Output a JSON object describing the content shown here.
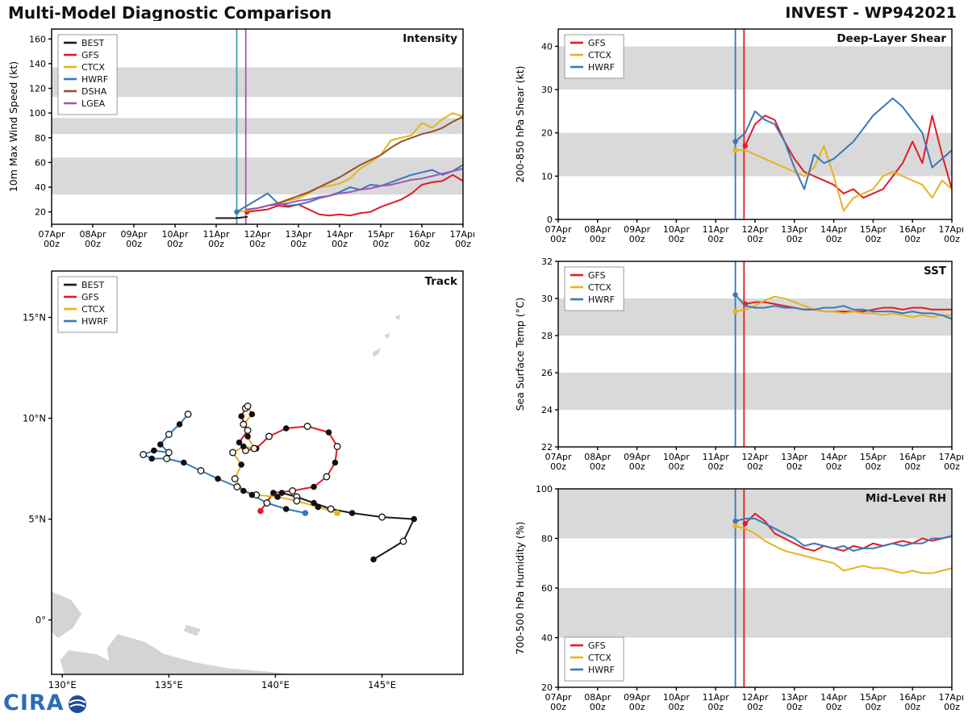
{
  "header": {
    "title_left": "Multi-Model Diagnostic Comparison",
    "title_right": "INVEST - WP942021"
  },
  "logo": {
    "text": "CIRA"
  },
  "colors": {
    "best": "#1a1a1a",
    "gfs": "#e41b23",
    "ctcx": "#e6b31e",
    "hwrf": "#3978b8",
    "dsha": "#96522a",
    "lgea": "#9b59b6",
    "band": "#d9d9d9",
    "land": "#d4d4d4",
    "vline_teal": "#3aa3b0"
  },
  "time_axis": {
    "xlim": [
      0,
      10
    ],
    "labels": [
      "07Apr",
      "08Apr",
      "09Apr",
      "10Apr",
      "11Apr",
      "12Apr",
      "13Apr",
      "14Apr",
      "15Apr",
      "16Apr",
      "17Apr"
    ],
    "sub": "00z"
  },
  "chart_data": [
    {
      "id": "intensity",
      "type": "line",
      "title": "Intensity",
      "ylabel": "10m Max Wind Speed (kt)",
      "ylim": [
        10,
        168
      ],
      "yticks": [
        20,
        40,
        60,
        80,
        100,
        120,
        140,
        160
      ],
      "bands": [
        [
          34,
          64
        ],
        [
          83,
          96
        ],
        [
          113,
          137
        ]
      ],
      "legend_pos": "tl",
      "vlines": [
        {
          "x": 4.5,
          "color": "#3aa3b0"
        },
        {
          "x": 4.72,
          "color": "#9b59b6"
        }
      ],
      "series": [
        {
          "name": "BEST",
          "color": "#1a1a1a",
          "x0": 4.0,
          "dt": 0.25,
          "m0": false,
          "y": [
            15,
            15,
            15,
            16
          ]
        },
        {
          "name": "GFS",
          "color": "#e41b23",
          "x0": 4.75,
          "dt": 0.25,
          "m0": true,
          "y": [
            20,
            21,
            22,
            25,
            24,
            26,
            22,
            18,
            17,
            18,
            17,
            19,
            20,
            24,
            27,
            30,
            35,
            42,
            44,
            45,
            50,
            45
          ]
        },
        {
          "name": "CTCX",
          "color": "#e6b31e",
          "x0": 4.5,
          "dt": 0.25,
          "m0": true,
          "mN": true,
          "y": [
            20,
            21,
            23,
            25,
            27,
            29,
            31,
            35,
            40,
            41,
            43,
            47,
            55,
            60,
            66,
            78,
            80,
            82,
            92,
            88,
            95,
            100,
            97
          ]
        },
        {
          "name": "HWRF",
          "color": "#3978b8",
          "x0": 4.5,
          "dt": 0.25,
          "m0": true,
          "y": [
            20,
            25,
            30,
            35,
            27,
            25,
            26,
            28,
            31,
            33,
            36,
            40,
            38,
            42,
            41,
            44,
            47,
            50,
            52,
            54,
            50,
            53,
            58
          ]
        },
        {
          "name": "DSHA",
          "color": "#96522a",
          "x0": 4.75,
          "dt": 0.25,
          "m0": false,
          "y": [
            22,
            23,
            25,
            27,
            30,
            33,
            36,
            40,
            44,
            48,
            53,
            58,
            62,
            66,
            72,
            77,
            80,
            83,
            85,
            88,
            93,
            97
          ]
        },
        {
          "name": "LGEA",
          "color": "#9b59b6",
          "x0": 4.75,
          "dt": 0.25,
          "m0": false,
          "y": [
            22,
            23,
            25,
            26,
            27,
            29,
            30,
            32,
            33,
            35,
            36,
            38,
            39,
            41,
            42,
            44,
            46,
            47,
            49,
            51,
            53,
            55
          ]
        }
      ]
    },
    {
      "id": "track",
      "type": "track",
      "title": "Track",
      "xlim": [
        129.5,
        148.8
      ],
      "ylim": [
        -2.7,
        17.3
      ],
      "xticks": [
        {
          "v": 130,
          "label": "130°E"
        },
        {
          "v": 135,
          "label": "135°E"
        },
        {
          "v": 140,
          "label": "140°E"
        },
        {
          "v": 145,
          "label": "145°E"
        }
      ],
      "yticks": [
        {
          "v": 0,
          "label": "0°"
        },
        {
          "v": 5,
          "label": "5°N"
        },
        {
          "v": 10,
          "label": "10°N"
        },
        {
          "v": 15,
          "label": "15°N"
        }
      ],
      "land": [
        [
          [
            129.5,
            1.4
          ],
          [
            130.4,
            1.0
          ],
          [
            130.9,
            0.3
          ],
          [
            130.5,
            -0.4
          ],
          [
            129.8,
            -0.9
          ],
          [
            129.5,
            -0.6
          ]
        ],
        [
          [
            130.3,
            -1.5
          ],
          [
            131.6,
            -1.7
          ],
          [
            132.7,
            -2.3
          ],
          [
            132.3,
            -2.7
          ],
          [
            130.1,
            -2.7
          ],
          [
            129.9,
            -2.0
          ]
        ],
        [
          [
            132.6,
            -0.7
          ],
          [
            133.9,
            -1.1
          ],
          [
            134.8,
            -1.7
          ],
          [
            136.2,
            -2.1
          ],
          [
            137.8,
            -2.4
          ],
          [
            139.5,
            -2.55
          ],
          [
            141.0,
            -2.7
          ],
          [
            132.3,
            -2.7
          ],
          [
            132.1,
            -1.4
          ]
        ],
        [
          [
            135.8,
            -0.25
          ],
          [
            136.5,
            -0.45
          ],
          [
            136.3,
            -0.8
          ],
          [
            135.7,
            -0.55
          ]
        ],
        [
          [
            144.55,
            13.25
          ],
          [
            144.95,
            13.5
          ],
          [
            144.85,
            13.2
          ],
          [
            144.6,
            13.05
          ]
        ],
        [
          [
            145.1,
            14.1
          ],
          [
            145.35,
            14.25
          ],
          [
            145.3,
            13.95
          ]
        ],
        [
          [
            145.6,
            15.0
          ],
          [
            145.85,
            15.15
          ],
          [
            145.8,
            14.85
          ]
        ]
      ],
      "tracks": [
        {
          "name": "BEST",
          "color": "#1a1a1a",
          "points": [
            [
              144.6,
              3.0,
              "f"
            ],
            [
              146.0,
              3.9,
              "o"
            ],
            [
              146.5,
              5.0,
              "f"
            ],
            [
              145.0,
              5.1,
              "o"
            ],
            [
              143.6,
              5.3,
              "f"
            ],
            [
              142.6,
              5.5,
              "o"
            ],
            [
              141.8,
              5.8,
              "f"
            ],
            [
              141.0,
              6.1,
              "o"
            ],
            [
              140.3,
              6.3,
              "f"
            ]
          ]
        },
        {
          "name": "GFS",
          "color": "#e41b23",
          "points": [
            [
              139.3,
              5.4,
              "c"
            ],
            [
              139.9,
              6.3,
              "f"
            ],
            [
              140.8,
              6.4,
              "o"
            ],
            [
              141.8,
              6.6,
              "f"
            ],
            [
              142.4,
              7.1,
              "o"
            ],
            [
              142.8,
              7.8,
              "f"
            ],
            [
              142.9,
              8.6,
              "o"
            ],
            [
              142.5,
              9.3,
              "f"
            ],
            [
              141.5,
              9.6,
              "o"
            ],
            [
              140.5,
              9.5,
              "f"
            ],
            [
              139.7,
              9.1,
              "o"
            ],
            [
              139.1,
              8.5,
              "f"
            ],
            [
              138.6,
              8.4,
              "o"
            ],
            [
              138.3,
              8.8,
              "f"
            ],
            [
              138.7,
              9.4,
              "o"
            ],
            [
              138.4,
              10.1,
              "f"
            ],
            [
              138.6,
              10.5,
              "o"
            ]
          ]
        },
        {
          "name": "CTCX",
          "color": "#e6b31e",
          "points": [
            [
              142.9,
              5.3,
              "c"
            ],
            [
              142.0,
              5.6,
              "f"
            ],
            [
              141.0,
              5.9,
              "o"
            ],
            [
              140.1,
              6.1,
              "f"
            ],
            [
              139.1,
              6.2,
              "o"
            ],
            [
              138.5,
              6.4,
              "f"
            ],
            [
              138.1,
              7.0,
              "o"
            ],
            [
              138.4,
              7.7,
              "f"
            ],
            [
              138.0,
              8.3,
              "o"
            ],
            [
              138.5,
              8.6,
              "f"
            ],
            [
              139.0,
              8.5,
              "o"
            ],
            [
              138.7,
              9.1,
              "f"
            ],
            [
              138.5,
              9.7,
              "o"
            ],
            [
              138.9,
              10.2,
              "f"
            ],
            [
              138.7,
              10.6,
              "o"
            ]
          ]
        },
        {
          "name": "HWRF",
          "color": "#3978b8",
          "points": [
            [
              141.4,
              5.3,
              "c"
            ],
            [
              140.5,
              5.5,
              "f"
            ],
            [
              139.6,
              5.8,
              "o"
            ],
            [
              138.9,
              6.2,
              "f"
            ],
            [
              138.2,
              6.6,
              "o"
            ],
            [
              137.3,
              7.0,
              "f"
            ],
            [
              136.5,
              7.4,
              "o"
            ],
            [
              135.7,
              7.8,
              "f"
            ],
            [
              134.9,
              8.0,
              "o"
            ],
            [
              134.2,
              8.0,
              "f"
            ],
            [
              133.8,
              8.2,
              "o"
            ],
            [
              134.3,
              8.4,
              "f"
            ],
            [
              135.0,
              8.3,
              "o"
            ],
            [
              134.6,
              8.7,
              "f"
            ],
            [
              135.0,
              9.2,
              "o"
            ],
            [
              135.5,
              9.7,
              "f"
            ],
            [
              135.9,
              10.2,
              "o"
            ]
          ]
        }
      ]
    },
    {
      "id": "shear",
      "type": "line",
      "title": "Deep-Layer Shear",
      "ylabel": "200-850 hPa Shear (kt)",
      "ylim": [
        0,
        44
      ],
      "yticks": [
        0,
        10,
        20,
        30,
        40
      ],
      "bands": [
        [
          10,
          20
        ],
        [
          30,
          40
        ]
      ],
      "legend_pos": "tl",
      "vlines": [
        {
          "x": 4.5,
          "color": "#3978b8"
        },
        {
          "x": 4.72,
          "color": "#e41b23"
        }
      ],
      "series": [
        {
          "name": "GFS",
          "color": "#e41b23",
          "x0": 4.75,
          "dt": 0.25,
          "m0": true,
          "y": [
            17,
            22,
            24,
            23,
            18,
            14,
            11,
            10,
            9,
            8,
            6,
            7,
            5,
            6,
            7,
            10,
            13,
            18,
            13,
            24,
            15,
            7
          ]
        },
        {
          "name": "CTCX",
          "color": "#e6b31e",
          "x0": 4.5,
          "dt": 0.25,
          "m0": true,
          "y": [
            16,
            16,
            15,
            14,
            13,
            12,
            11,
            10,
            12,
            17,
            10,
            2,
            5,
            6,
            7,
            10,
            11,
            10,
            9,
            8,
            5,
            9,
            7
          ]
        },
        {
          "name": "HWRF",
          "color": "#3978b8",
          "x0": 4.5,
          "dt": 0.25,
          "m0": true,
          "y": [
            18,
            20,
            25,
            23,
            22,
            18,
            12,
            7,
            15,
            13,
            14,
            16,
            18,
            21,
            24,
            26,
            28,
            26,
            23,
            20,
            12,
            14,
            16
          ]
        }
      ]
    },
    {
      "id": "sst",
      "type": "line",
      "title": "SST",
      "ylabel": "Sea Surface Temp (°C)",
      "ylim": [
        22,
        32
      ],
      "yticks": [
        22,
        24,
        26,
        28,
        30,
        32
      ],
      "bands": [
        [
          24,
          26
        ],
        [
          28,
          30
        ]
      ],
      "legend_pos": "tl",
      "vlines": [
        {
          "x": 4.5,
          "color": "#3978b8"
        },
        {
          "x": 4.72,
          "color": "#e41b23"
        }
      ],
      "series": [
        {
          "name": "GFS",
          "color": "#e41b23",
          "x0": 4.75,
          "dt": 0.25,
          "m0": true,
          "y": [
            29.7,
            29.8,
            29.8,
            29.7,
            29.6,
            29.5,
            29.4,
            29.4,
            29.3,
            29.3,
            29.3,
            29.3,
            29.3,
            29.4,
            29.5,
            29.5,
            29.4,
            29.5,
            29.5,
            29.4,
            29.4,
            29.4
          ]
        },
        {
          "name": "CTCX",
          "color": "#e6b31e",
          "x0": 4.5,
          "dt": 0.25,
          "m0": true,
          "y": [
            29.3,
            29.4,
            29.6,
            29.9,
            30.1,
            30.0,
            29.8,
            29.6,
            29.4,
            29.3,
            29.3,
            29.2,
            29.3,
            29.2,
            29.2,
            29.1,
            29.2,
            29.1,
            29.0,
            29.1,
            29.0,
            29.1,
            29.1
          ]
        },
        {
          "name": "HWRF",
          "color": "#3978b8",
          "x0": 4.5,
          "dt": 0.25,
          "m0": true,
          "y": [
            30.2,
            29.6,
            29.5,
            29.5,
            29.6,
            29.5,
            29.5,
            29.4,
            29.4,
            29.5,
            29.5,
            29.6,
            29.4,
            29.4,
            29.3,
            29.3,
            29.3,
            29.2,
            29.3,
            29.2,
            29.2,
            29.1,
            28.9
          ]
        }
      ]
    },
    {
      "id": "rh",
      "type": "line",
      "title": "Mid-Level RH",
      "ylabel": "700-500 hPa Humidity (%)",
      "ylim": [
        20,
        100
      ],
      "yticks": [
        20,
        40,
        60,
        80,
        100
      ],
      "bands": [
        [
          40,
          60
        ],
        [
          80,
          100
        ]
      ],
      "legend_pos": "bl",
      "vlines": [
        {
          "x": 4.5,
          "color": "#3978b8"
        },
        {
          "x": 4.72,
          "color": "#e41b23"
        }
      ],
      "series": [
        {
          "name": "GFS",
          "color": "#e41b23",
          "x0": 4.75,
          "dt": 0.25,
          "m0": true,
          "y": [
            86,
            90,
            87,
            82,
            80,
            78,
            76,
            75,
            77,
            76,
            75,
            77,
            76,
            78,
            77,
            78,
            79,
            78,
            80,
            79,
            80,
            81
          ]
        },
        {
          "name": "CTCX",
          "color": "#e6b31e",
          "x0": 4.5,
          "dt": 0.25,
          "m0": true,
          "y": [
            85,
            84,
            82,
            79,
            77,
            75,
            74,
            73,
            72,
            71,
            70,
            67,
            68,
            69,
            68,
            68,
            67,
            66,
            67,
            66,
            66,
            67,
            68
          ]
        },
        {
          "name": "HWRF",
          "color": "#3978b8",
          "x0": 4.5,
          "dt": 0.25,
          "m0": true,
          "y": [
            87,
            88,
            88,
            86,
            84,
            82,
            80,
            77,
            78,
            77,
            76,
            77,
            75,
            76,
            76,
            77,
            78,
            77,
            78,
            78,
            80,
            80,
            81
          ]
        }
      ]
    }
  ]
}
